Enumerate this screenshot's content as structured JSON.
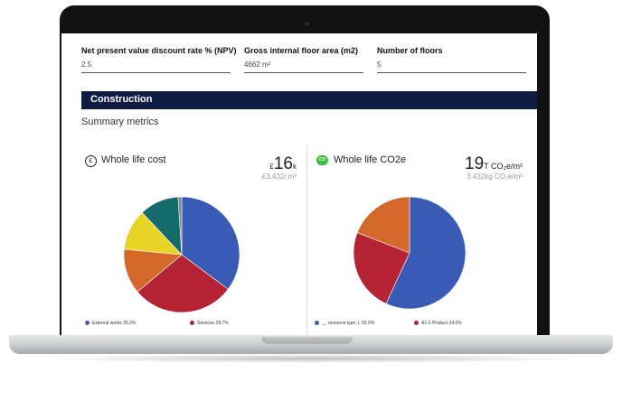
{
  "fields": [
    {
      "label": "Net present value discount rate % (NPV)",
      "value": "2.5"
    },
    {
      "label": "Gross internal floor area (m2)",
      "value": "4662 m²"
    },
    {
      "label": "Number of floors",
      "value": "5"
    }
  ],
  "section": {
    "title": "Construction"
  },
  "summary_title": "Summary metrics",
  "cards": {
    "cost": {
      "icon": "pound-icon",
      "icon_glyph": "£",
      "title": "Whole life cost",
      "currency": "£",
      "value": "16",
      "unit": "k",
      "per_area": "£3.432/ m²",
      "legend": [
        {
          "label": "External works 35.2%",
          "color": "#3a5bb5"
        },
        {
          "label": "Services 28.7%",
          "color": "#b52334"
        }
      ]
    },
    "carbon": {
      "icon": "co2-icon",
      "icon_glyph": "CO",
      "title": "Whole life CO2e",
      "value": "19",
      "unit": "T CO₂e/m²",
      "per_area": "3.432kg CO₂e/m²",
      "legend": [
        {
          "label": "__ resource type: L 56.9%",
          "color": "#3a5bb5"
        },
        {
          "label": "A1-3 Product 24.0%",
          "color": "#b52334"
        }
      ]
    }
  },
  "chart_data": [
    {
      "type": "pie",
      "title": "Whole life cost",
      "values": [
        35.2,
        28.7,
        12.6,
        11.5,
        11.0,
        1.0
      ],
      "colors": [
        "#3a5bb5",
        "#b52334",
        "#d4682a",
        "#e8d427",
        "#156b6b",
        "#7a8b8b"
      ]
    },
    {
      "type": "pie",
      "title": "Whole life CO2e",
      "values": [
        56.9,
        24.0,
        19.1
      ],
      "colors": [
        "#3a5bb5",
        "#b52334",
        "#d4682a"
      ]
    }
  ]
}
